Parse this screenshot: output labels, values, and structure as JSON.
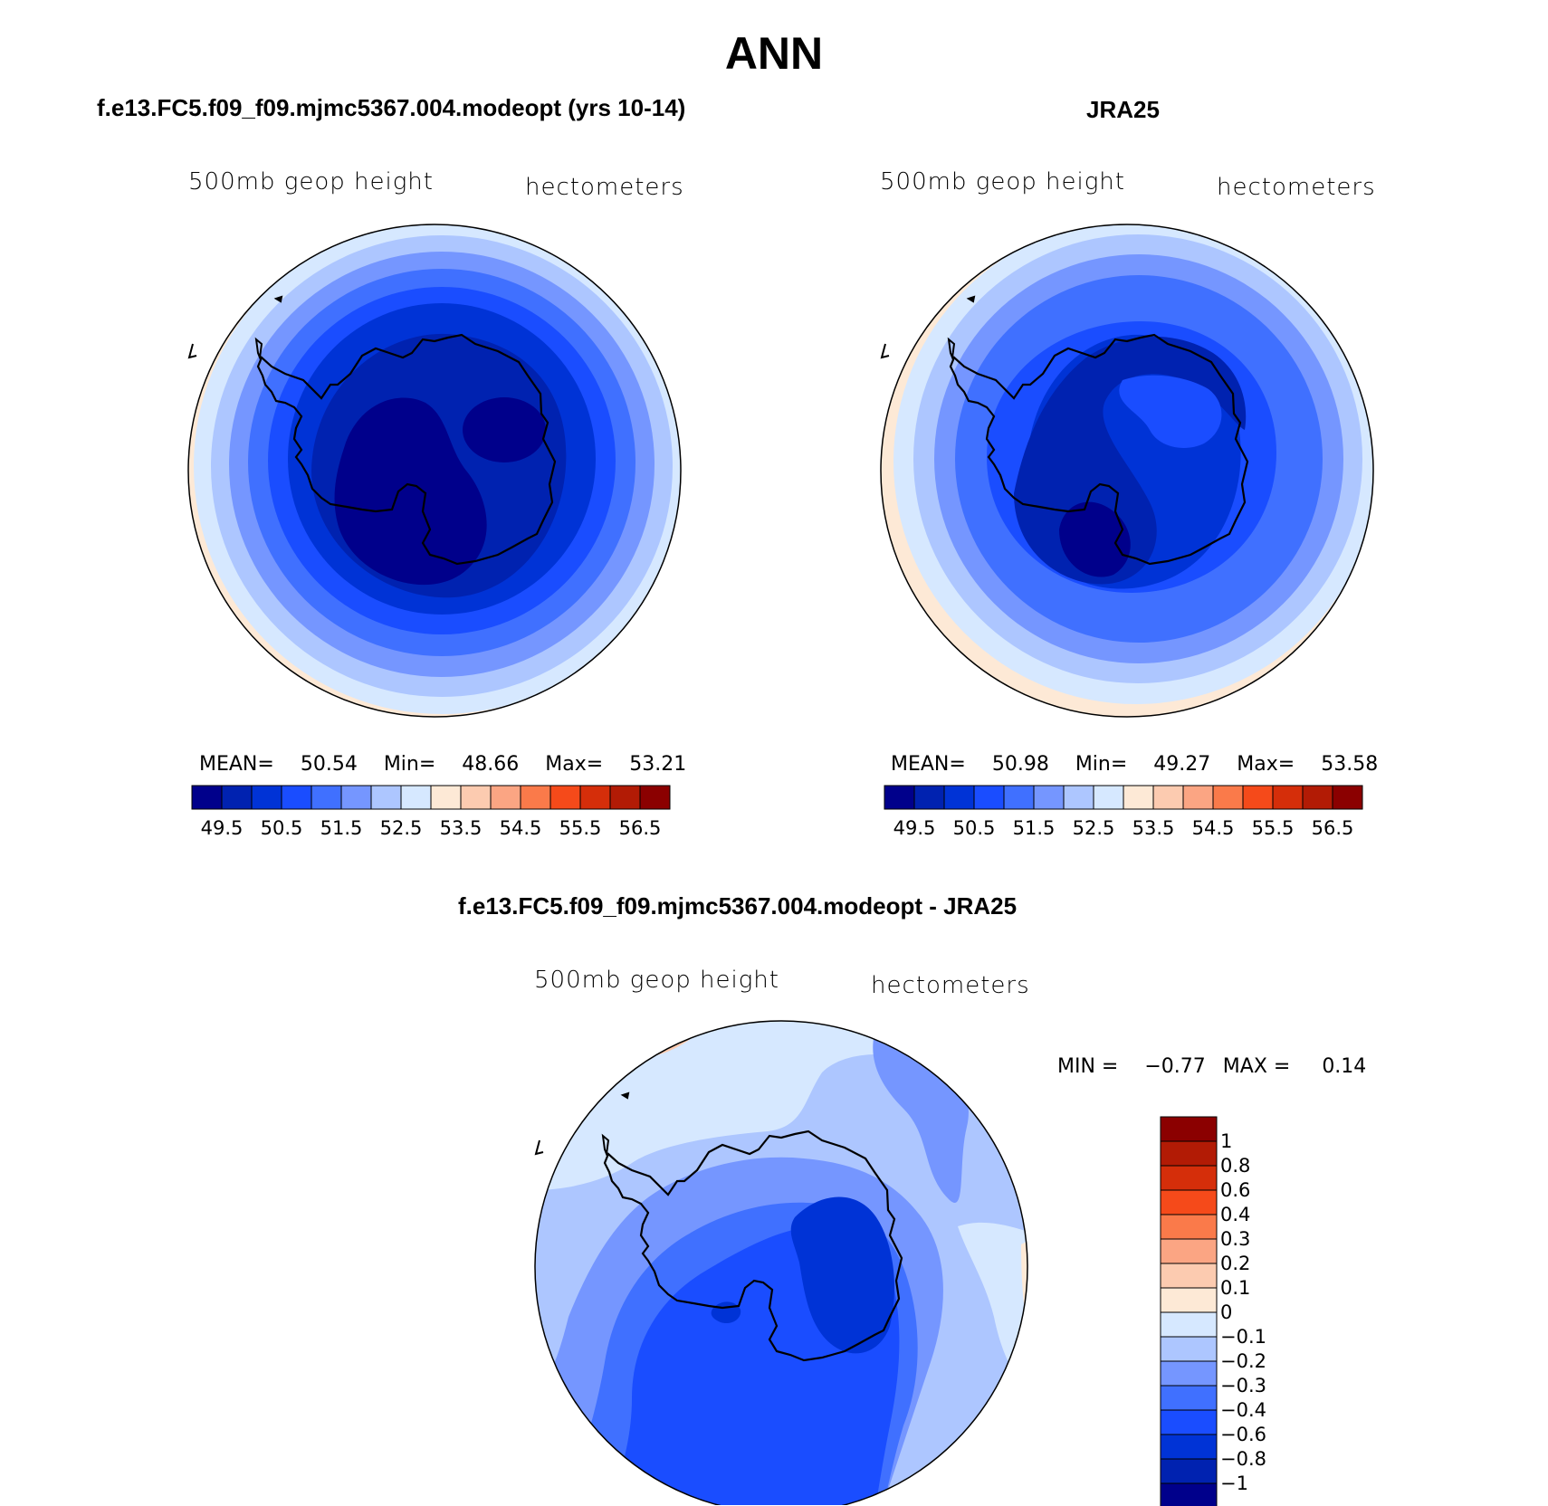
{
  "title": "ANN",
  "panels": [
    {
      "id": "model",
      "case_title": "f.e13.FC5.f09_f09.mjmc5367.004.modeopt (yrs 10-14)",
      "var_label": "500mb geop height",
      "units_label": "hectometers",
      "stats": {
        "mean_label": "MEAN=",
        "mean": "50.54",
        "min_label": "Min=",
        "min": "48.66",
        "max_label": "Max=",
        "max": "53.21"
      }
    },
    {
      "id": "obs",
      "case_title": "JRA25",
      "var_label": "500mb geop height",
      "units_label": "hectometers",
      "stats": {
        "mean_label": "MEAN=",
        "mean": "50.98",
        "min_label": "Min=",
        "min": "49.27",
        "max_label": "Max=",
        "max": "53.58"
      }
    },
    {
      "id": "diff",
      "case_title": "f.e13.FC5.f09_f09.mjmc5367.004.modeopt - JRA25",
      "var_label": "500mb geop height",
      "units_label": "hectometers",
      "stats": {
        "min_label": "MIN =",
        "min": "−0.77",
        "max_label": "MAX =",
        "max": "0.14"
      }
    }
  ],
  "colorbar_abs": {
    "colors": [
      "#00008b",
      "#0022b0",
      "#0033d6",
      "#1a4dff",
      "#4070ff",
      "#7596ff",
      "#adc6ff",
      "#d6e8ff",
      "#fde9d6",
      "#fccbb0",
      "#fba583",
      "#fa7a4a",
      "#f54a1a",
      "#d52e0a",
      "#b21b05",
      "#8b0000"
    ],
    "labels": [
      "49.5",
      "50.5",
      "51.5",
      "52.5",
      "53.5",
      "54.5",
      "55.5",
      "56.5"
    ]
  },
  "colorbar_diff": {
    "colors": [
      "#00008b",
      "#0022b0",
      "#0033d6",
      "#1a4dff",
      "#4070ff",
      "#7596ff",
      "#adc6ff",
      "#d6e8ff",
      "#fde9d6",
      "#fccbb0",
      "#fba583",
      "#fa7a4a",
      "#f54a1a",
      "#d52e0a",
      "#b21b05",
      "#8b0000"
    ],
    "labels": [
      "1",
      "0.8",
      "0.6",
      "0.4",
      "0.3",
      "0.2",
      "0.1",
      "0",
      "−0.1",
      "−0.2",
      "−0.3",
      "−0.4",
      "−0.6",
      "−0.8",
      "−1"
    ]
  }
}
